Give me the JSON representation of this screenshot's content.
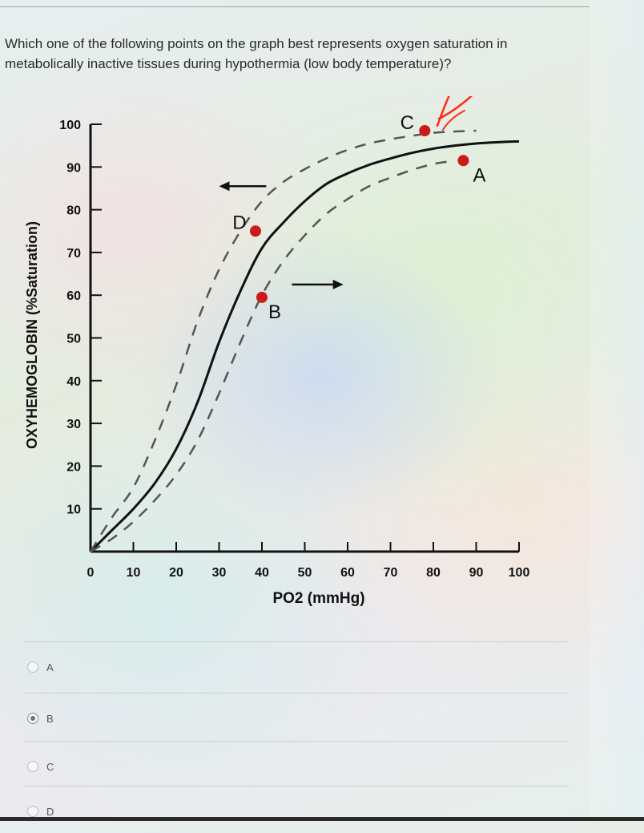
{
  "question": {
    "text": "Which one of the following points on the graph best represents oxygen saturation in metabolically inactive tissues during hypothermia (low body temperature)?"
  },
  "chart_data": {
    "type": "line",
    "xlabel": "PO2 (mmHg)",
    "ylabel": "OXYHEMOGLOBIN (%Saturation)",
    "xlim": [
      0,
      100
    ],
    "ylim": [
      0,
      100
    ],
    "x_ticks": [
      0,
      10,
      20,
      30,
      40,
      50,
      60,
      70,
      80,
      90,
      100
    ],
    "y_ticks": [
      10,
      20,
      30,
      40,
      50,
      60,
      70,
      80,
      90,
      100
    ],
    "series": [
      {
        "style": "solid",
        "x": [
          0,
          5,
          10,
          15,
          20,
          25,
          30,
          35,
          40,
          45,
          50,
          55,
          60,
          65,
          70,
          75,
          80,
          85,
          90,
          95,
          100
        ],
        "y": [
          0,
          5,
          10,
          16,
          24,
          35,
          49,
          61,
          71,
          77,
          82,
          86,
          88.5,
          90.5,
          92,
          93.3,
          94.3,
          95,
          95.5,
          95.8,
          96
        ]
      },
      {
        "style": "dashed",
        "x": [
          0,
          5,
          10,
          15,
          20,
          25,
          30,
          35,
          40,
          45,
          50,
          55,
          60,
          65,
          70,
          75,
          80,
          85,
          90
        ],
        "y": [
          0,
          8,
          15,
          26,
          39,
          54,
          66,
          75,
          82,
          86.5,
          89.5,
          92,
          94,
          95.5,
          96.5,
          97.3,
          98,
          98.3,
          98.5
        ]
      },
      {
        "style": "dashed",
        "x": [
          0,
          5,
          10,
          15,
          20,
          25,
          30,
          35,
          40,
          45,
          50,
          55,
          60,
          65,
          70,
          75,
          80,
          85
        ],
        "y": [
          0,
          3,
          7,
          12,
          18,
          26,
          37,
          49,
          60,
          68,
          74,
          79,
          82.5,
          85.5,
          87.5,
          89.3,
          90.7,
          91.5
        ]
      }
    ],
    "points": [
      {
        "label": "A",
        "x": 87,
        "y": 91.5
      },
      {
        "label": "B",
        "x": 40,
        "y": 59.5
      },
      {
        "label": "C",
        "x": 78,
        "y": 98.5
      },
      {
        "label": "D",
        "x": 38.5,
        "y": 75
      }
    ],
    "arrows": [
      {
        "direction": "left",
        "from_x": 41,
        "to_x": 30,
        "y": 85.5
      },
      {
        "direction": "right",
        "from_x": 47,
        "to_x": 59,
        "y": 62.5
      }
    ],
    "colors": {
      "point": "#cc1a1a",
      "curve": "#111111",
      "dashed": "#555555",
      "annotation": "#ff2a1a"
    },
    "annotation": "handwritten red check mark next to point C"
  },
  "choices": [
    {
      "label": "A",
      "selected": false
    },
    {
      "label": "B",
      "selected": true
    },
    {
      "label": "C",
      "selected": false
    },
    {
      "label": "D",
      "selected": false
    }
  ]
}
